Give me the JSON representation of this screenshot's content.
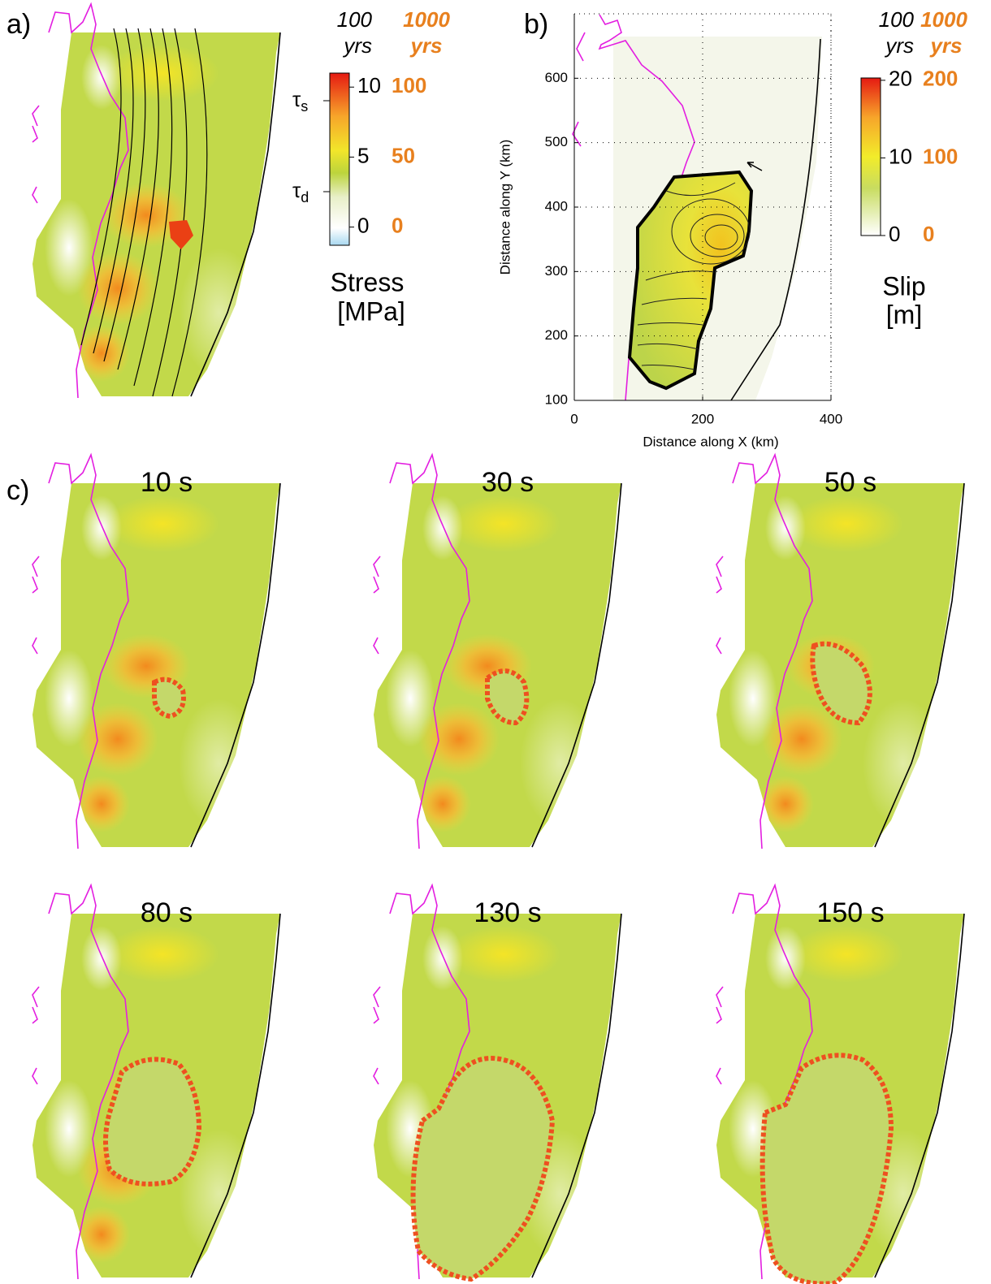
{
  "panel_a": {
    "label": "a)",
    "header_100": "100",
    "header_100_unit": "yrs",
    "header_1000": "1000",
    "header_1000_unit": "yrs",
    "colorbar_lim": [
      -1.3,
      11
    ],
    "colorbar_ticks": [
      0,
      5,
      10
    ],
    "colorbar_ticks_1000": [
      0,
      50,
      100
    ],
    "tau_s": {
      "symbol": "τ",
      "sub": "s"
    },
    "tau_d": {
      "symbol": "τ",
      "sub": "d"
    },
    "title": "Stress",
    "unit": "[MPa]"
  },
  "chart_data": {
    "type": "map",
    "label": "b)",
    "x_label": "Distance along X (km)",
    "y_label": "Distance along Y (km)",
    "xlim": [
      0,
      400
    ],
    "ylim": [
      100,
      700
    ],
    "xticks": [
      0,
      200,
      400
    ],
    "yticks": [
      100,
      200,
      300,
      400,
      500,
      600
    ],
    "grid": true,
    "header_100": "100",
    "header_100_unit": "yrs",
    "header_1000": "1000",
    "header_1000_unit": "yrs",
    "colorbar_lim": [
      0,
      20.3
    ],
    "colorbar_ticks": [
      0,
      10,
      20
    ],
    "colorbar_ticks_1000": [
      0,
      100,
      200
    ],
    "colorbar_title": "Slip",
    "colorbar_unit": "[m]"
  },
  "panel_c": {
    "label": "c)",
    "snapshots": [
      "10 s",
      "30 s",
      "50 s",
      "80 s",
      "130 s",
      "150 s"
    ]
  }
}
